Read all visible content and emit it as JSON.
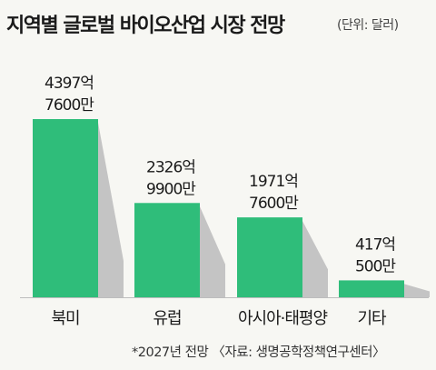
{
  "chart_data": {
    "type": "bar",
    "title": "지역별 글로벌 바이오산업 시장 전망",
    "unit_note": "(단위: 달러)",
    "categories": [
      "북미",
      "유럽",
      "아시아·태평양",
      "기타"
    ],
    "values": [
      439776000000,
      232699000000,
      197176000000,
      41705000000
    ],
    "value_labels": [
      [
        "4397억",
        "7600만"
      ],
      [
        "2326억",
        "9900만"
      ],
      [
        "1971억",
        "7600만"
      ],
      [
        "417억",
        "500만"
      ]
    ],
    "footnote": "*2027년 전망 〈자료: 생명공학정책연구센터〉",
    "bar_color": "#2fbd7a",
    "shadow_color": "#c4c4c4",
    "background": "#f7f7f3"
  }
}
